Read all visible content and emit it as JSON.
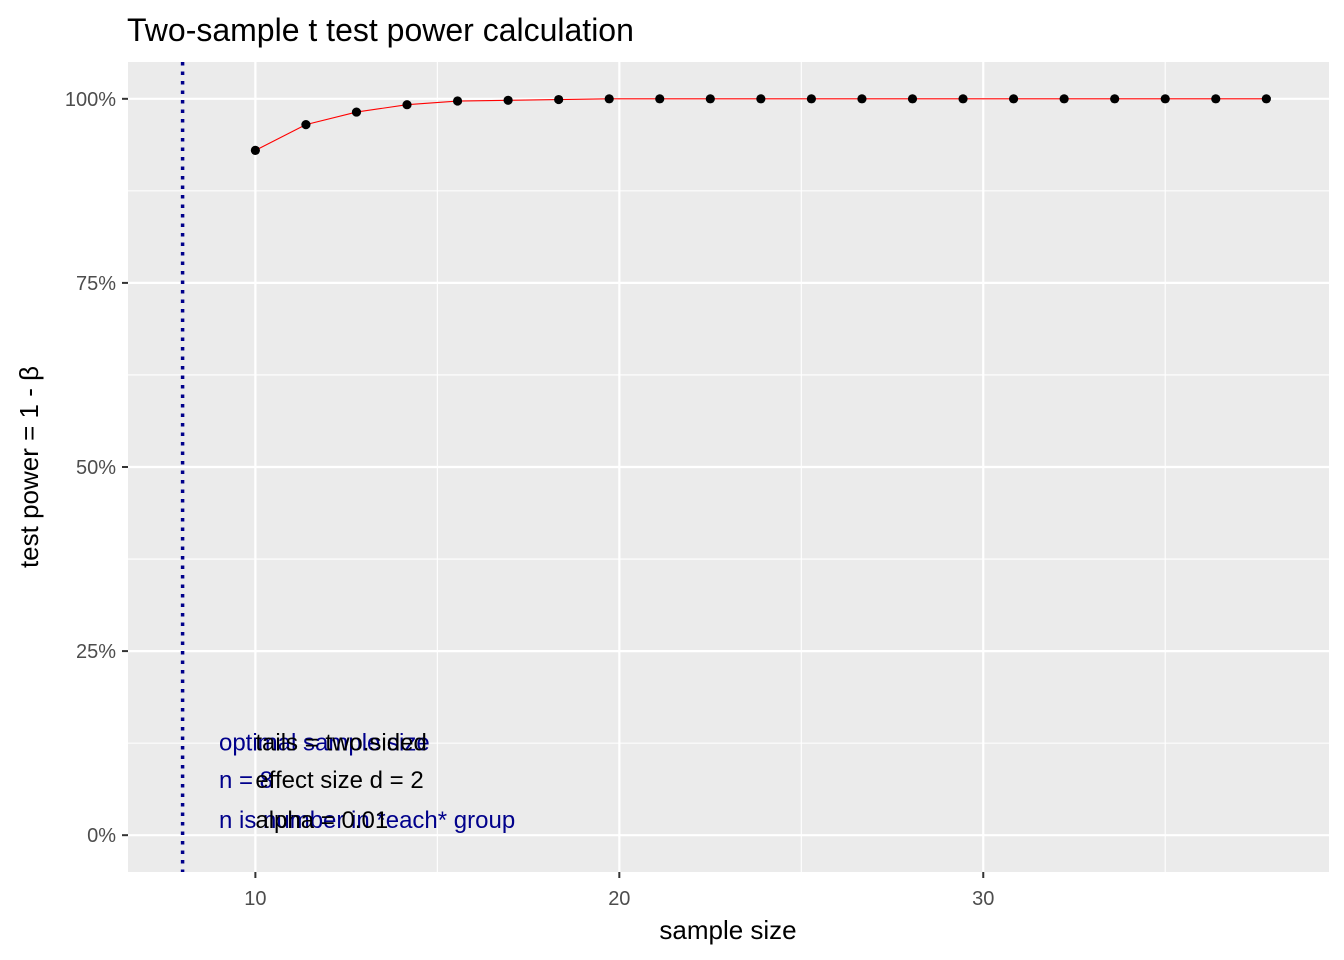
{
  "chart_data": {
    "type": "line",
    "title": "Two-sample t test power calculation",
    "xlabel": "sample size",
    "ylabel": "test power = 1 - β",
    "xlim": [
      6.5,
      39.5
    ],
    "ylim": [
      -0.05,
      1.05
    ],
    "x_ticks": [
      10,
      20,
      30
    ],
    "x_tick_labels": [
      "10",
      "20",
      "30"
    ],
    "y_ticks": [
      0,
      0.25,
      0.5,
      0.75,
      1.0
    ],
    "y_tick_labels": [
      "0%",
      "25%",
      "50%",
      "75%",
      "100%"
    ],
    "grid": true,
    "legend": "none",
    "series": [
      {
        "x": [
          10,
          11.3889,
          12.7778,
          14.1667,
          15.5556,
          16.9444,
          18.3333,
          19.7222,
          21.1111,
          22.5,
          23.8889,
          25.2778,
          26.6667,
          28.0556,
          29.4444,
          30.8333,
          32.2222,
          33.6111,
          35.0,
          36.3889,
          37.7778
        ],
        "y": [
          0.93,
          0.965,
          0.982,
          0.992,
          0.997,
          0.998,
          0.999,
          1.0,
          1.0,
          1.0,
          1.0,
          1.0,
          1.0,
          1.0,
          1.0,
          1.0,
          1.0,
          1.0,
          1.0,
          1.0,
          1.0
        ]
      }
    ],
    "vline": {
      "x": 8
    },
    "annotations": [
      {
        "text": "optimal sample size",
        "x": 9,
        "y": 0.115,
        "color": "#00008b"
      },
      {
        "text": "n = 8",
        "x": 9,
        "y": 0.064,
        "color": "#00008b"
      },
      {
        "text": "n is number in *each* group",
        "x": 9,
        "y": 0.01,
        "color": "#00008b"
      },
      {
        "text": "tails = two.sided",
        "x": 10,
        "y": 0.115,
        "color": "#000000"
      },
      {
        "text": "effect size d = 2",
        "x": 10,
        "y": 0.064,
        "color": "#000000"
      },
      {
        "text": "alpha = 0.01",
        "x": 10,
        "y": 0.01,
        "color": "#000000"
      }
    ],
    "colors": {
      "panel": "#ebebeb",
      "grid": "#ffffff",
      "line": "#ff0000",
      "points": "#000000",
      "vline": "#00008b"
    }
  }
}
